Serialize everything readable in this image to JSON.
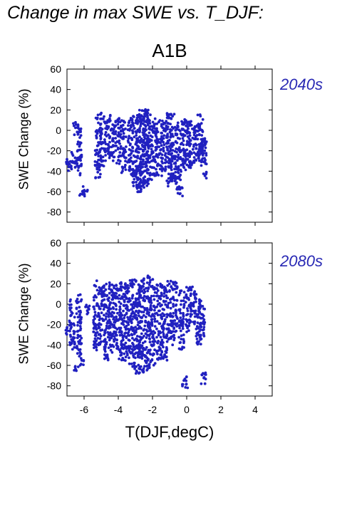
{
  "header": {
    "title": "Change in max SWE vs. T_DJF:",
    "scenario": "A1B"
  },
  "colors": {
    "points": "#2020c0",
    "period_label": "#2828b4"
  },
  "chart_data": [
    {
      "type": "scatter",
      "period": "2040s",
      "xlabel": "T(DJF,degC)",
      "ylabel": "SWE Change (%)",
      "xlim": [
        -7,
        5
      ],
      "ylim": [
        -90,
        60
      ],
      "xticks": [
        -6,
        -4,
        -2,
        0,
        2,
        4
      ],
      "yticks": [
        60,
        40,
        20,
        0,
        -20,
        -40,
        -60,
        -80
      ],
      "x_tick_labels_shown": false,
      "clusters": [
        {
          "x": -7.0,
          "y_min": -35,
          "y_max": -28
        },
        {
          "x": -6.8,
          "y_min": -40,
          "y_max": -30
        },
        {
          "x": -6.6,
          "y_min": -38,
          "y_max": -20
        },
        {
          "x": -6.5,
          "y_min": -5,
          "y_max": 8
        },
        {
          "x": -6.3,
          "y_min": -45,
          "y_max": 5
        },
        {
          "x": -6.1,
          "y_min": -65,
          "y_max": -55
        },
        {
          "x": -5.9,
          "y_min": -60,
          "y_max": -58
        },
        {
          "x": -5.2,
          "y_min": -48,
          "y_max": 18
        },
        {
          "x": -4.9,
          "y_min": -35,
          "y_max": 18
        },
        {
          "x": -4.6,
          "y_min": -30,
          "y_max": 15
        },
        {
          "x": -4.3,
          "y_min": -30,
          "y_max": 10
        },
        {
          "x": -4.0,
          "y_min": -35,
          "y_max": 12
        },
        {
          "x": -3.7,
          "y_min": -42,
          "y_max": 10
        },
        {
          "x": -3.3,
          "y_min": -45,
          "y_max": 12
        },
        {
          "x": -3.0,
          "y_min": -55,
          "y_max": 15
        },
        {
          "x": -2.8,
          "y_min": -62,
          "y_max": 18
        },
        {
          "x": -2.6,
          "y_min": -60,
          "y_max": 20
        },
        {
          "x": -2.4,
          "y_min": -55,
          "y_max": 22
        },
        {
          "x": -2.2,
          "y_min": -50,
          "y_max": 18
        },
        {
          "x": -1.9,
          "y_min": -45,
          "y_max": 12
        },
        {
          "x": -1.6,
          "y_min": -45,
          "y_max": 12
        },
        {
          "x": -1.3,
          "y_min": -40,
          "y_max": 10
        },
        {
          "x": -1.0,
          "y_min": -55,
          "y_max": 17
        },
        {
          "x": -0.8,
          "y_min": -50,
          "y_max": 17
        },
        {
          "x": -0.5,
          "y_min": -58,
          "y_max": 8
        },
        {
          "x": -0.4,
          "y_min": -66,
          "y_max": -55
        },
        {
          "x": -0.2,
          "y_min": -45,
          "y_max": 12
        },
        {
          "x": 0.1,
          "y_min": -38,
          "y_max": 10
        },
        {
          "x": 0.3,
          "y_min": -35,
          "y_max": 8
        },
        {
          "x": 0.6,
          "y_min": -30,
          "y_max": 5
        },
        {
          "x": 0.8,
          "y_min": -28,
          "y_max": 18
        },
        {
          "x": 1.0,
          "y_min": -48,
          "y_max": -5
        }
      ]
    },
    {
      "type": "scatter",
      "period": "2080s",
      "xlabel": "T(DJF,degC)",
      "ylabel": "SWE Change (%)",
      "xlim": [
        -7,
        5
      ],
      "ylim": [
        -90,
        60
      ],
      "xticks": [
        -6,
        -4,
        -2,
        0,
        2,
        4
      ],
      "yticks": [
        60,
        40,
        20,
        0,
        -20,
        -40,
        -60,
        -80
      ],
      "x_tick_labels_shown": true,
      "clusters": [
        {
          "x": -7.0,
          "y_min": -30,
          "y_max": -22
        },
        {
          "x": -6.7,
          "y_min": -45,
          "y_max": 5
        },
        {
          "x": -6.5,
          "y_min": -68,
          "y_max": -60
        },
        {
          "x": -6.3,
          "y_min": -55,
          "y_max": 10
        },
        {
          "x": -6.1,
          "y_min": -60,
          "y_max": -55
        },
        {
          "x": -5.8,
          "y_min": -10,
          "y_max": 0
        },
        {
          "x": -5.3,
          "y_min": -45,
          "y_max": 24
        },
        {
          "x": -5.0,
          "y_min": -40,
          "y_max": 20
        },
        {
          "x": -4.7,
          "y_min": -55,
          "y_max": 20
        },
        {
          "x": -4.4,
          "y_min": -50,
          "y_max": 22
        },
        {
          "x": -4.1,
          "y_min": -45,
          "y_max": 20
        },
        {
          "x": -3.8,
          "y_min": -55,
          "y_max": 22
        },
        {
          "x": -3.5,
          "y_min": -60,
          "y_max": 22
        },
        {
          "x": -3.2,
          "y_min": -62,
          "y_max": 24
        },
        {
          "x": -2.9,
          "y_min": -68,
          "y_max": 24
        },
        {
          "x": -2.6,
          "y_min": -70,
          "y_max": 25
        },
        {
          "x": -2.3,
          "y_min": -65,
          "y_max": 28
        },
        {
          "x": -2.0,
          "y_min": -60,
          "y_max": 25
        },
        {
          "x": -1.6,
          "y_min": -55,
          "y_max": 20
        },
        {
          "x": -1.3,
          "y_min": -55,
          "y_max": 18
        },
        {
          "x": -1.0,
          "y_min": -35,
          "y_max": 23
        },
        {
          "x": -0.7,
          "y_min": -40,
          "y_max": 22
        },
        {
          "x": -0.3,
          "y_min": -45,
          "y_max": 15
        },
        {
          "x": -0.1,
          "y_min": -82,
          "y_max": -68
        },
        {
          "x": 0.1,
          "y_min": -30,
          "y_max": 18
        },
        {
          "x": 0.4,
          "y_min": -20,
          "y_max": 17
        },
        {
          "x": 0.7,
          "y_min": -40,
          "y_max": 5
        },
        {
          "x": 0.9,
          "y_min": -35,
          "y_max": 0
        },
        {
          "x": 1.0,
          "y_min": -78,
          "y_max": -65
        }
      ]
    }
  ]
}
